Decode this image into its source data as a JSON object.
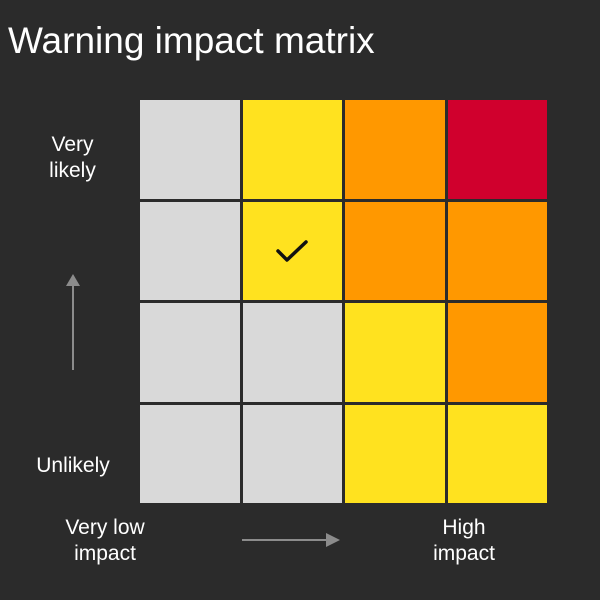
{
  "title": "Warning impact matrix",
  "y_axis": {
    "top_label": "Very likely",
    "bottom_label": "Unlikely"
  },
  "x_axis": {
    "left_label": "Very low impact",
    "right_label": "High impact"
  },
  "colors": {
    "background": "#2b2b2b",
    "grey": "#d9d9d9",
    "yellow": "#ffe21f",
    "amber": "#ff9800",
    "red": "#d0002d",
    "arrow": "#8c8c8c"
  },
  "matrix": {
    "rows": [
      [
        "grey",
        "yellow",
        "amber",
        "red"
      ],
      [
        "grey",
        "yellow",
        "amber",
        "amber"
      ],
      [
        "grey",
        "grey",
        "yellow",
        "amber"
      ],
      [
        "grey",
        "grey",
        "yellow",
        "yellow"
      ]
    ],
    "selected": {
      "row": 1,
      "col": 1,
      "icon": "checkmark-icon"
    }
  }
}
